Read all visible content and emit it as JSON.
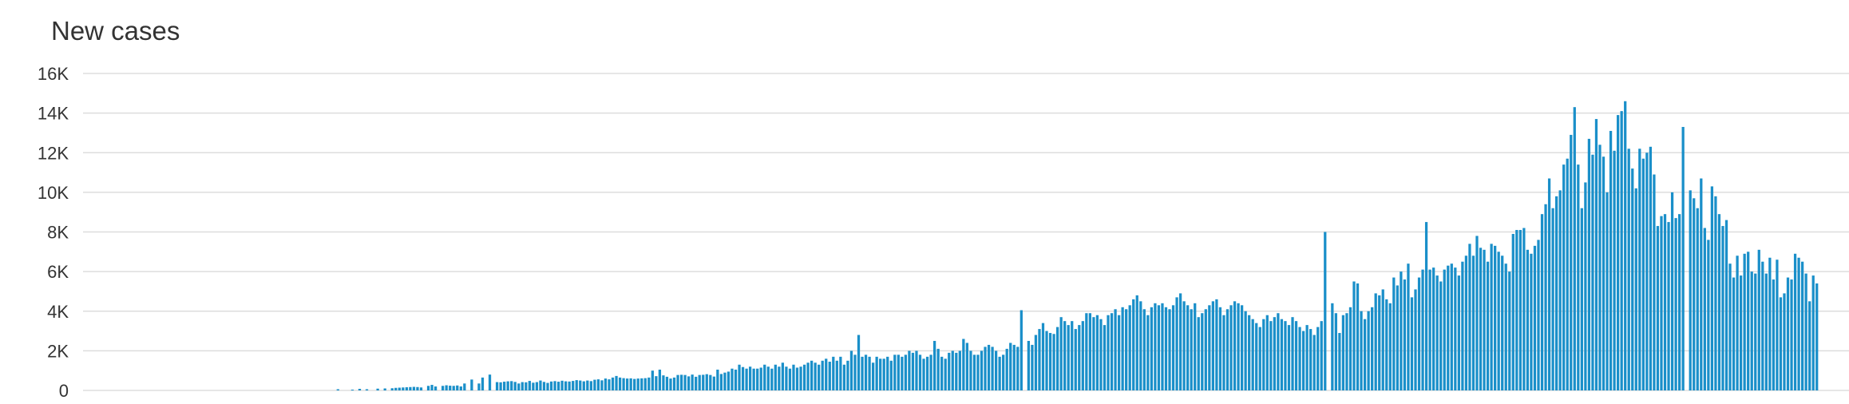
{
  "chart_data": {
    "type": "bar",
    "title": "New cases",
    "xlabel": "",
    "ylabel": "",
    "ylim": [
      0,
      16000
    ],
    "yticks": [
      0,
      2000,
      4000,
      6000,
      8000,
      10000,
      12000,
      14000,
      16000
    ],
    "ytick_labels": [
      "0",
      "2K",
      "4K",
      "6K",
      "8K",
      "10K",
      "12K",
      "14K",
      "16K"
    ],
    "grid": true,
    "legend": "none",
    "bar_color": "#1a8fc9",
    "values": [
      0,
      0,
      0,
      0,
      0,
      0,
      0,
      0,
      0,
      0,
      0,
      0,
      0,
      0,
      0,
      0,
      0,
      0,
      0,
      0,
      0,
      0,
      0,
      0,
      0,
      0,
      0,
      0,
      0,
      0,
      0,
      0,
      0,
      0,
      0,
      0,
      0,
      0,
      0,
      0,
      0,
      0,
      0,
      0,
      0,
      0,
      0,
      0,
      0,
      0,
      0,
      0,
      0,
      0,
      0,
      0,
      0,
      0,
      0,
      0,
      0,
      0,
      0,
      0,
      0,
      0,
      0,
      0,
      0,
      0,
      60,
      0,
      0,
      0,
      40,
      0,
      80,
      0,
      60,
      0,
      0,
      90,
      0,
      100,
      0,
      110,
      130,
      140,
      150,
      160,
      170,
      180,
      170,
      150,
      0,
      230,
      280,
      200,
      0,
      230,
      260,
      240,
      230,
      250,
      200,
      350,
      0,
      550,
      0,
      350,
      650,
      0,
      800,
      0,
      420,
      410,
      440,
      460,
      470,
      430,
      350,
      420,
      410,
      480,
      390,
      420,
      500,
      430,
      380,
      450,
      470,
      440,
      490,
      460,
      450,
      480,
      520,
      500,
      460,
      500,
      470,
      540,
      560,
      510,
      600,
      560,
      650,
      730,
      650,
      620,
      600,
      610,
      580,
      600,
      610,
      620,
      650,
      1000,
      720,
      1050,
      760,
      690,
      600,
      650,
      780,
      790,
      780,
      710,
      800,
      690,
      780,
      790,
      820,
      780,
      700,
      1050,
      830,
      900,
      950,
      1100,
      1050,
      1300,
      1180,
      1100,
      1200,
      1100,
      1100,
      1150,
      1300,
      1200,
      1100,
      1300,
      1200,
      1400,
      1200,
      1100,
      1300,
      1150,
      1200,
      1300,
      1400,
      1500,
      1400,
      1300,
      1500,
      1600,
      1450,
      1700,
      1500,
      1700,
      1300,
      1500,
      2000,
      1800,
      2800,
      1700,
      1800,
      1700,
      1400,
      1700,
      1600,
      1600,
      1700,
      1500,
      1800,
      1800,
      1700,
      1800,
      2000,
      1900,
      2000,
      1800,
      1600,
      1700,
      1800,
      2500,
      2100,
      1700,
      1600,
      1900,
      2000,
      1900,
      2000,
      2600,
      2400,
      2000,
      1800,
      1800,
      2000,
      2200,
      2300,
      2200,
      2000,
      1700,
      1800,
      2100,
      2400,
      2300,
      2200,
      4050,
      0,
      2500,
      2300,
      2800,
      3100,
      3400,
      3000,
      2900,
      2850,
      3200,
      3700,
      3500,
      3300,
      3500,
      3100,
      3300,
      3500,
      3900,
      3900,
      3700,
      3800,
      3600,
      3300,
      3800,
      3900,
      4100,
      3800,
      4200,
      4100,
      4300,
      4600,
      4800,
      4500,
      4100,
      3800,
      4200,
      4400,
      4300,
      4400,
      4200,
      4100,
      4300,
      4700,
      4900,
      4500,
      4300,
      4100,
      4400,
      3700,
      3900,
      4100,
      4300,
      4500,
      4600,
      4200,
      3800,
      4100,
      4300,
      4500,
      4400,
      4300,
      4000,
      3800,
      3600,
      3400,
      3200,
      3600,
      3800,
      3500,
      3700,
      3900,
      3600,
      3500,
      3300,
      3700,
      3500,
      3200,
      3000,
      3300,
      3100,
      2800,
      3200,
      3500,
      8000,
      0,
      4400,
      3900,
      2900,
      3800,
      3900,
      4200,
      5500,
      5400,
      4000,
      3600,
      4000,
      4200,
      4900,
      4800,
      5100,
      4600,
      4400,
      5700,
      5300,
      6000,
      5600,
      6400,
      4700,
      5100,
      5700,
      6100,
      8500,
      6100,
      6200,
      5800,
      5500,
      6100,
      6300,
      6400,
      6200,
      5800,
      6500,
      6800,
      7400,
      6800,
      7800,
      7200,
      7100,
      6500,
      7400,
      7300,
      7000,
      6800,
      6400,
      6000,
      7900,
      8100,
      8100,
      8200,
      7100,
      6900,
      7300,
      7600,
      8900,
      9400,
      10700,
      9200,
      9800,
      10100,
      11400,
      11700,
      12900,
      14300,
      11400,
      9200,
      10500,
      12700,
      11900,
      13700,
      12400,
      11800,
      10000,
      13100,
      12100,
      13900,
      14100,
      14600,
      12200,
      11200,
      10200,
      12200,
      11700,
      12000,
      12300,
      10900,
      8300,
      8800,
      8900,
      8500,
      10000,
      8700,
      8900,
      13300,
      0,
      10100,
      9700,
      9200,
      10700,
      8200,
      7600,
      10300,
      9800,
      8900,
      8300,
      8600,
      6400,
      5700,
      6800,
      5800,
      6900,
      7000,
      6000,
      5900,
      7100,
      6500,
      5900,
      6700,
      5600,
      6600,
      4700,
      4900,
      5700,
      5600,
      6900,
      6700,
      6500,
      5900,
      4500,
      5800,
      5400
    ]
  }
}
